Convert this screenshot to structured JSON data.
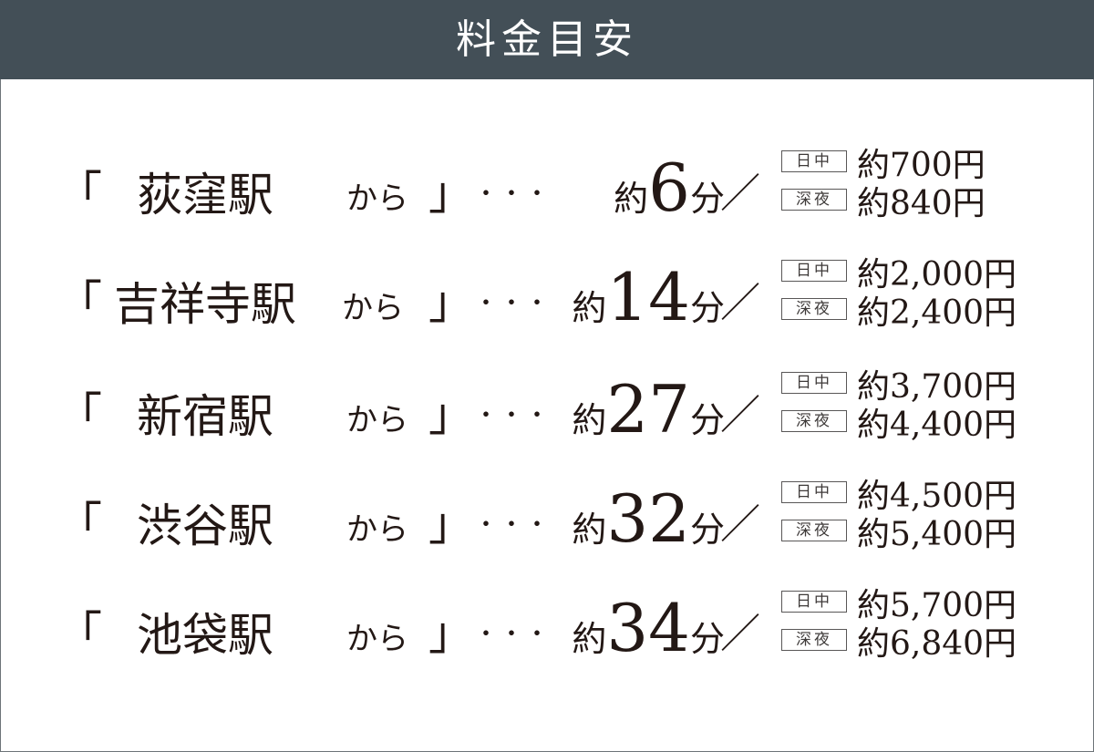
{
  "header": {
    "title": "料金目安"
  },
  "labels": {
    "open": "「",
    "close": "」",
    "dots": "・・・",
    "yaku": "約",
    "fun": "分",
    "slash": "／",
    "day": "日中",
    "night": "深夜"
  },
  "rows": [
    {
      "station": "荻窪駅",
      "kara": "から",
      "minutes": "6",
      "day_price": "約700円",
      "night_price": "約840円"
    },
    {
      "station": "吉祥寺駅",
      "kara": "から",
      "minutes": "14",
      "day_price": "約2,000円",
      "night_price": "約2,400円"
    },
    {
      "station": "新宿駅",
      "kara": "から",
      "minutes": "27",
      "day_price": "約3,700円",
      "night_price": "約4,400円"
    },
    {
      "station": "渋谷駅",
      "kara": "から",
      "minutes": "32",
      "day_price": "約4,500円",
      "night_price": "約5,400円"
    },
    {
      "station": "池袋駅",
      "kara": "から",
      "minutes": "34",
      "day_price": "約5,700円",
      "night_price": "約6,840円"
    }
  ]
}
